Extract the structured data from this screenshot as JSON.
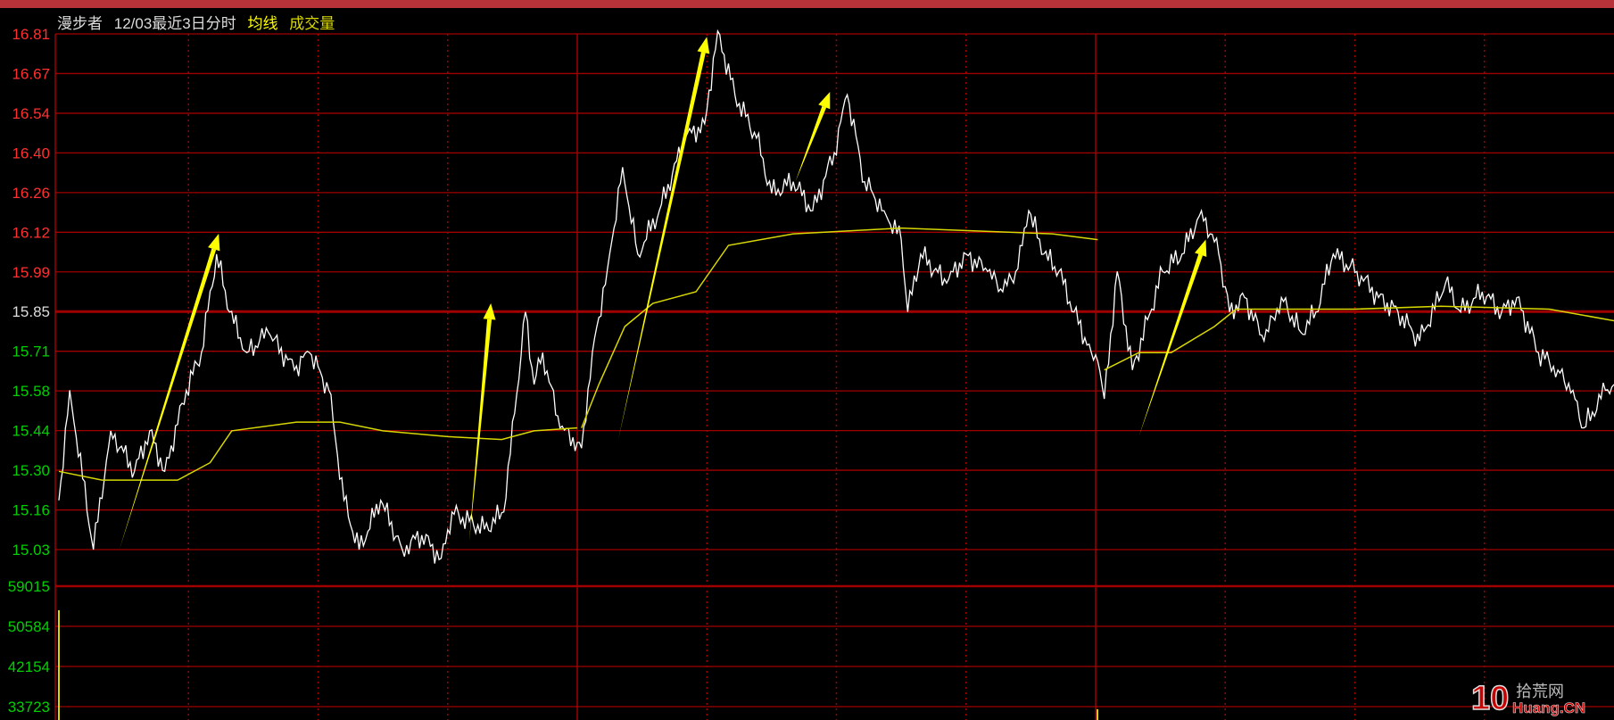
{
  "header": {
    "name": "漫步者",
    "period": "12/03最近3日分时",
    "avg_label": "均线",
    "volume_label": "成交量"
  },
  "colors": {
    "grid": "#a00000",
    "price": "#ffffff",
    "avg": "#d8d800",
    "arrow": "#ffff00",
    "up": "#ff3030",
    "down": "#00d000",
    "flat": "#dddddd"
  },
  "logo": {
    "text": "10拾荒网 Huang.CN"
  },
  "chart_data": {
    "type": "line",
    "title": "",
    "x_unit": "trading minute (3 days, 240 per day)",
    "xlim": [
      0,
      720
    ],
    "day_boundaries": [
      240,
      480
    ],
    "ylim": [
      15.03,
      16.81
    ],
    "prev_close": 15.85,
    "price_ticks": [
      "16.81",
      "16.67",
      "16.54",
      "16.40",
      "16.26",
      "16.12",
      "15.99",
      "15.85",
      "15.71",
      "15.58",
      "15.44",
      "15.30",
      "15.16",
      "15.03"
    ],
    "volume_ticks": [
      "59015",
      "50584",
      "42154",
      "33723"
    ],
    "grid": true,
    "series": [
      {
        "name": "",
        "kind": "price",
        "points": [
          [
            0,
            15.2
          ],
          [
            5,
            15.58
          ],
          [
            16,
            15.03
          ],
          [
            24,
            15.44
          ],
          [
            35,
            15.3
          ],
          [
            42,
            15.44
          ],
          [
            49,
            15.3
          ],
          [
            59,
            15.58
          ],
          [
            66,
            15.71
          ],
          [
            73,
            16.05
          ],
          [
            79,
            15.85
          ],
          [
            87,
            15.71
          ],
          [
            97,
            15.78
          ],
          [
            109,
            15.65
          ],
          [
            116,
            15.71
          ],
          [
            125,
            15.58
          ],
          [
            132,
            15.2
          ],
          [
            139,
            15.03
          ],
          [
            149,
            15.2
          ],
          [
            159,
            15.03
          ],
          [
            168,
            15.08
          ],
          [
            177,
            15.0
          ],
          [
            182,
            15.16
          ],
          [
            197,
            15.1
          ],
          [
            206,
            15.16
          ],
          [
            211,
            15.5
          ],
          [
            216,
            15.85
          ],
          [
            220,
            15.6
          ],
          [
            224,
            15.71
          ],
          [
            232,
            15.45
          ],
          [
            240,
            15.4
          ],
          [
            242,
            15.38
          ],
          [
            247,
            15.71
          ],
          [
            254,
            16.0
          ],
          [
            261,
            16.35
          ],
          [
            268,
            16.05
          ],
          [
            278,
            16.2
          ],
          [
            290,
            16.45
          ],
          [
            299,
            16.5
          ],
          [
            305,
            16.82
          ],
          [
            313,
            16.6
          ],
          [
            323,
            16.45
          ],
          [
            330,
            16.26
          ],
          [
            340,
            16.3
          ],
          [
            349,
            16.2
          ],
          [
            359,
            16.4
          ],
          [
            365,
            16.6
          ],
          [
            373,
            16.3
          ],
          [
            382,
            16.2
          ],
          [
            390,
            16.1
          ],
          [
            393,
            15.85
          ],
          [
            399,
            16.05
          ],
          [
            411,
            15.95
          ],
          [
            420,
            16.05
          ],
          [
            430,
            15.99
          ],
          [
            437,
            15.92
          ],
          [
            444,
            16.0
          ],
          [
            449,
            16.2
          ],
          [
            456,
            16.05
          ],
          [
            463,
            15.99
          ],
          [
            470,
            15.85
          ],
          [
            478,
            15.71
          ],
          [
            481,
            15.68
          ],
          [
            484,
            15.55
          ],
          [
            490,
            15.99
          ],
          [
            497,
            15.65
          ],
          [
            511,
            15.99
          ],
          [
            520,
            16.05
          ],
          [
            529,
            16.2
          ],
          [
            537,
            16.05
          ],
          [
            542,
            15.85
          ],
          [
            549,
            15.9
          ],
          [
            558,
            15.75
          ],
          [
            566,
            15.9
          ],
          [
            575,
            15.78
          ],
          [
            582,
            15.85
          ],
          [
            590,
            16.05
          ],
          [
            601,
            15.99
          ],
          [
            611,
            15.9
          ],
          [
            620,
            15.85
          ],
          [
            630,
            15.75
          ],
          [
            642,
            15.95
          ],
          [
            649,
            15.85
          ],
          [
            659,
            15.92
          ],
          [
            668,
            15.85
          ],
          [
            675,
            15.9
          ],
          [
            685,
            15.71
          ],
          [
            694,
            15.65
          ],
          [
            701,
            15.58
          ],
          [
            706,
            15.45
          ],
          [
            716,
            15.58
          ],
          [
            720,
            15.6
          ]
        ]
      },
      {
        "name": "均线",
        "kind": "average",
        "points": [
          [
            0,
            15.3
          ],
          [
            20,
            15.27
          ],
          [
            55,
            15.27
          ],
          [
            70,
            15.33
          ],
          [
            80,
            15.44
          ],
          [
            110,
            15.47
          ],
          [
            130,
            15.47
          ],
          [
            150,
            15.44
          ],
          [
            180,
            15.42
          ],
          [
            205,
            15.41
          ],
          [
            220,
            15.44
          ],
          [
            240,
            15.45
          ],
          null,
          [
            242,
            15.45
          ],
          [
            250,
            15.6
          ],
          [
            262,
            15.8
          ],
          [
            275,
            15.88
          ],
          [
            295,
            15.92
          ],
          [
            310,
            16.08
          ],
          [
            340,
            16.12
          ],
          [
            390,
            16.14
          ],
          [
            460,
            16.12
          ],
          [
            481,
            16.1
          ],
          null,
          [
            484,
            15.65
          ],
          [
            500,
            15.71
          ],
          [
            515,
            15.71
          ],
          [
            535,
            15.8
          ],
          [
            545,
            15.86
          ],
          [
            600,
            15.86
          ],
          [
            640,
            15.87
          ],
          [
            690,
            15.86
          ],
          [
            720,
            15.82
          ]
        ]
      }
    ],
    "annotations": [
      {
        "type": "arrow",
        "from": [
          28,
          15.03
        ],
        "to": [
          74,
          16.12
        ]
      },
      {
        "type": "arrow",
        "from": [
          190,
          15.06
        ],
        "to": [
          200,
          15.88
        ]
      },
      {
        "type": "arrow",
        "from": [
          259,
          15.41
        ],
        "to": [
          300,
          16.8
        ]
      },
      {
        "type": "arrow",
        "from": [
          341,
          16.3
        ],
        "to": [
          357,
          16.61
        ]
      },
      {
        "type": "arrow",
        "from": [
          500,
          15.42
        ],
        "to": [
          531,
          16.1
        ]
      }
    ]
  }
}
